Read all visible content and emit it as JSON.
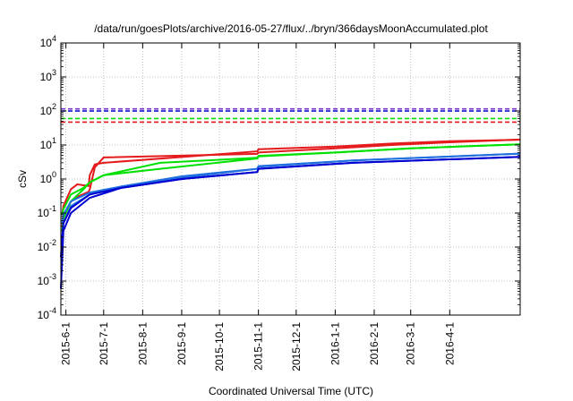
{
  "chart_data": {
    "type": "line",
    "title": "/data/run/goesPlots/archive/2016-05-27/flux/../bryn/366daysMoonAccumulated.plot",
    "xlabel": "Coordinated Universal Time (UTC)",
    "ylabel": "cSv",
    "y_scale": "log",
    "ylim": [
      0.0001,
      10000
    ],
    "y_ticks": [
      {
        "value": 0.0001,
        "mantissa": "10",
        "exp": "-4"
      },
      {
        "value": 0.001,
        "mantissa": "10",
        "exp": "-3"
      },
      {
        "value": 0.01,
        "mantissa": "10",
        "exp": "-2"
      },
      {
        "value": 0.1,
        "mantissa": "10",
        "exp": "-1"
      },
      {
        "value": 1,
        "mantissa": "10",
        "exp": "0"
      },
      {
        "value": 10,
        "mantissa": "10",
        "exp": "1"
      },
      {
        "value": 100,
        "mantissa": "10",
        "exp": "2"
      },
      {
        "value": 1000,
        "mantissa": "10",
        "exp": "3"
      },
      {
        "value": 10000,
        "mantissa": "10",
        "exp": "4"
      }
    ],
    "xlim": [
      "2015-05-28",
      "2016-05-27"
    ],
    "x_ticks": [
      "2015-6-1",
      "2015-7-1",
      "2015-8-1",
      "2015-9-1",
      "2015-10-1",
      "2015-11-1",
      "2015-12-1",
      "2016-1-1",
      "2016-2-1",
      "2016-3-1",
      "2016-4-1"
    ],
    "x_tick_dates": [
      "2015-06-01",
      "2015-07-01",
      "2015-08-01",
      "2015-09-01",
      "2015-10-01",
      "2015-11-01",
      "2015-12-01",
      "2016-01-01",
      "2016-02-01",
      "2016-03-01",
      "2016-04-01"
    ],
    "grid": true,
    "series": [
      {
        "color": "#e41a1c",
        "values": [
          [
            0.04,
            0.09
          ],
          [
            0.07,
            0.16
          ],
          [
            0.22,
            0.5
          ],
          [
            0.3,
            0.7
          ],
          [
            0.42,
            0.62
          ],
          [
            0.5,
            1.3
          ],
          [
            2.2,
            2.7
          ],
          [
            4.3,
            3.0
          ],
          [
            5.5,
            6.5
          ],
          [
            6.0,
            7.5
          ],
          [
            8.0,
            9.0
          ],
          [
            10.0,
            11.0
          ],
          [
            12.0,
            13.0
          ],
          [
            14.5,
            14.3
          ]
        ],
        "raw_x": [
          "2015-05-29",
          "2015-05-30",
          "2015-06-05",
          "2015-06-10",
          "2015-06-19",
          "2015-06-20",
          "2015-06-24",
          "2015-07-01",
          "2015-10-31",
          "2015-11-01",
          "2016-01-01",
          "2016-02-15",
          "2016-04-01",
          "2016-05-27"
        ]
      },
      {
        "color": "#00e000",
        "values": [
          [
            0.03,
            0.09
          ],
          [
            0.07,
            0.13
          ],
          [
            0.22,
            0.35
          ],
          [
            0.5,
            0.55
          ],
          [
            0.8,
            0.8
          ],
          [
            1.3,
            1.3
          ],
          [
            2.0,
            3.0
          ],
          [
            4.0,
            4.2
          ],
          [
            4.6,
            4.8
          ],
          [
            6.0,
            6.0
          ],
          [
            8.0,
            8.0
          ],
          [
            10.5,
            10.5
          ]
        ],
        "raw_x": [
          "2015-05-29",
          "2015-05-30",
          "2015-06-05",
          "2015-06-15",
          "2015-06-20",
          "2015-07-01",
          "2015-08-15",
          "2015-10-31",
          "2015-11-01",
          "2016-01-01",
          "2016-03-01",
          "2016-05-27"
        ]
      },
      {
        "color": "#1f6fde",
        "values": [
          [
            0.02,
            0.05
          ],
          [
            0.05,
            0.09
          ],
          [
            0.16,
            0.22
          ],
          [
            0.35,
            0.4
          ],
          [
            0.6,
            0.6
          ],
          [
            1.1,
            1.2
          ],
          [
            2.0,
            2.0
          ],
          [
            2.3,
            2.4
          ],
          [
            3.5,
            3.5
          ],
          [
            5.6,
            5.6
          ]
        ],
        "raw_x": [
          "2015-05-29",
          "2015-05-30",
          "2015-06-05",
          "2015-06-20",
          "2015-07-15",
          "2015-09-01",
          "2015-10-31",
          "2015-11-01",
          "2016-01-15",
          "2016-05-27"
        ]
      },
      {
        "color": "#0000d0",
        "values": [
          [
            0.0006,
            0.005
          ],
          [
            0.004,
            0.018
          ],
          [
            0.03,
            0.05
          ],
          [
            0.1,
            0.14
          ],
          [
            0.28,
            0.35
          ],
          [
            0.55,
            0.55
          ],
          [
            1.0,
            1.0
          ],
          [
            1.6,
            1.6
          ],
          [
            2.0,
            2.0
          ],
          [
            3.0,
            3.0
          ],
          [
            4.5,
            4.5
          ]
        ],
        "raw_x": [
          "2015-05-28",
          "2015-05-29",
          "2015-05-30",
          "2015-06-05",
          "2015-06-20",
          "2015-07-15",
          "2015-09-01",
          "2015-10-31",
          "2015-11-01",
          "2016-01-15",
          "2016-05-27"
        ]
      }
    ],
    "reference_lines": [
      {
        "color": "#7b2fd0",
        "style": "dashed",
        "value": 115
      },
      {
        "color": "#0000d0",
        "style": "dashed",
        "value": 100
      },
      {
        "color": "#00e000",
        "style": "dashed",
        "value": 60
      },
      {
        "color": "#e41a1c",
        "style": "dashed",
        "value": 47
      }
    ]
  }
}
